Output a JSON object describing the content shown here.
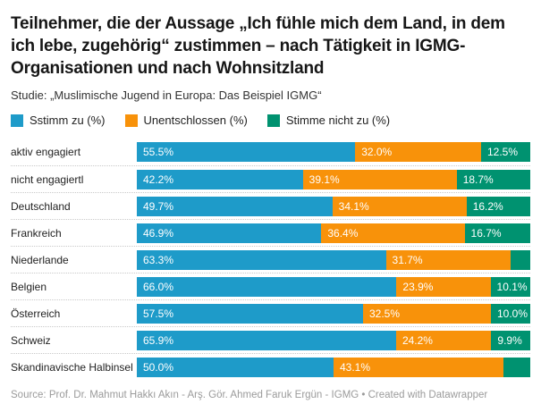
{
  "header": {
    "title": "Teilnehmer, die der Aussage „Ich fühle mich dem Land, in dem ich lebe, zugehörig“ zustimmen – nach Tätigkeit in IGMG-Organisationen und nach Wohnsitzland",
    "subtitle": "Studie: „Muslimische Jugend in Europa: Das Beispiel IGMG“"
  },
  "legend": {
    "items": [
      {
        "label": "Sstimm zu (%)",
        "color": "#1e9bc9"
      },
      {
        "label": "Unentschlossen (%)",
        "color": "#f8920a"
      },
      {
        "label": "Stimme nicht zu (%)",
        "color": "#009270"
      }
    ]
  },
  "chart_data": {
    "type": "bar",
    "orientation": "horizontal",
    "stacked": true,
    "unit": "%",
    "xlim": [
      0,
      100
    ],
    "grid": false,
    "legend_position": "top",
    "categories": [
      "aktiv engagiert",
      "nicht engagiertl",
      "Deutschland",
      "Frankreich",
      "Niederlande",
      "Belgien",
      "Österreich",
      "Schweiz",
      "Skandinavische Halbinsel"
    ],
    "series": [
      {
        "key": "agree",
        "name": "Sstimm zu (%)",
        "color": "#1e9bc9",
        "values": [
          55.5,
          42.2,
          49.7,
          46.9,
          63.3,
          66.0,
          57.5,
          65.9,
          50.0
        ],
        "labels": [
          "55.5%",
          "42.2%",
          "49.7%",
          "46.9%",
          "63.3%",
          "66.0%",
          "57.5%",
          "65.9%",
          "50.0%"
        ]
      },
      {
        "key": "undecided",
        "name": "Unentschlossen (%)",
        "color": "#f8920a",
        "values": [
          32.0,
          39.1,
          34.1,
          36.4,
          31.7,
          23.9,
          32.5,
          24.2,
          43.1
        ],
        "labels": [
          "32.0%",
          "39.1%",
          "34.1%",
          "36.4%",
          "31.7%",
          "23.9%",
          "32.5%",
          "24.2%",
          "43.1%"
        ]
      },
      {
        "key": "disagree",
        "name": "Stimme nicht zu (%)",
        "color": "#009270",
        "values": [
          12.5,
          18.7,
          16.2,
          16.7,
          5.0,
          10.1,
          10.0,
          9.9,
          6.9
        ],
        "labels": [
          "12.5%",
          "18.7%",
          "16.2%",
          "16.7%",
          "",
          "10.1%",
          "10.0%",
          "9.9%",
          ""
        ]
      }
    ]
  },
  "footer": {
    "source": "Source: Prof. Dr. Mahmut Hakkı Akın - Arş. Gör. Ahmed Faruk Ergün - IGMG • Created with Datawrapper"
  }
}
